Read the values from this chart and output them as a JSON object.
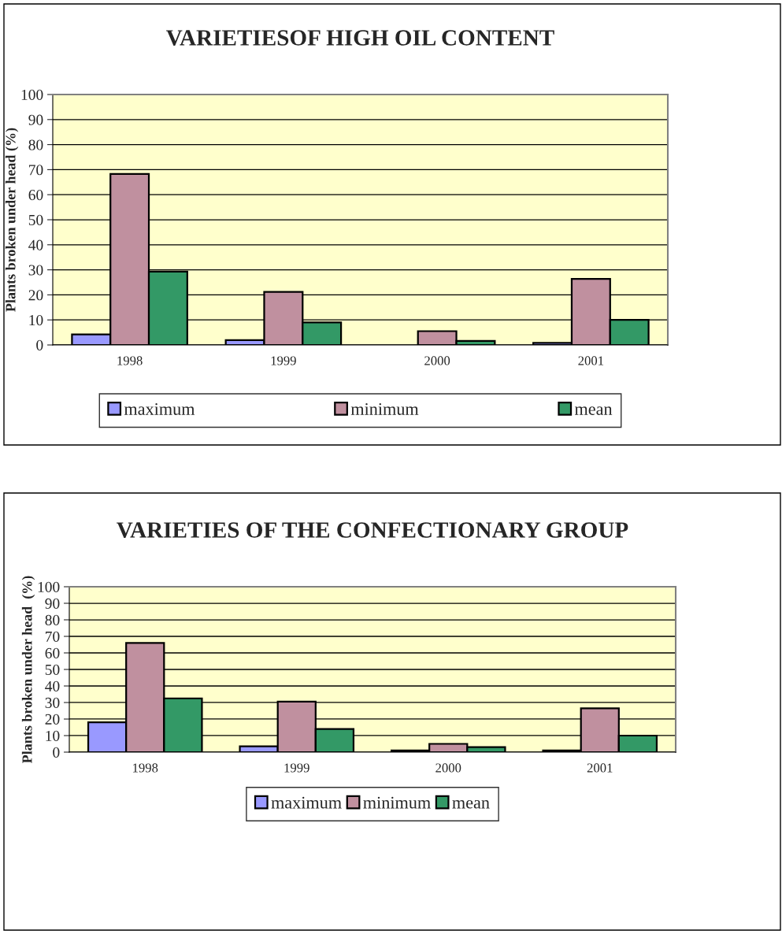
{
  "chart_data": [
    {
      "type": "bar",
      "title": "VARIETIESOF HIGH OIL CONTENT",
      "ylabel": "Plants broken under head (%)",
      "categories": [
        "1998",
        "1999",
        "2000",
        "2001"
      ],
      "series": [
        {
          "name": "maximum",
          "color": "#9999ff",
          "values": [
            4.2,
            1.9,
            null,
            0.8
          ]
        },
        {
          "name": "minimum",
          "color": "#c0909f",
          "values": [
            68.3,
            21.2,
            5.5,
            26.4
          ]
        },
        {
          "name": "mean",
          "color": "#339966",
          "values": [
            29.3,
            9.0,
            1.6,
            10
          ]
        }
      ],
      "ylim": [
        0,
        100
      ],
      "yticks": [
        0,
        10,
        20,
        30,
        40,
        50,
        60,
        70,
        80,
        90,
        100
      ],
      "grid": "y",
      "legend": "bottom"
    },
    {
      "type": "bar",
      "title": "VARIETIES OF THE CONFECTIONARY GROUP",
      "ylabel": "Plants broken under head  (%)",
      "categories": [
        "1998",
        "1999",
        "2000",
        "2001"
      ],
      "series": [
        {
          "name": "maximum",
          "color": "#9999ff",
          "values": [
            18,
            3.5,
            1,
            1
          ]
        },
        {
          "name": "minimum",
          "color": "#c0909f",
          "values": [
            66,
            30.5,
            5,
            26.5
          ]
        },
        {
          "name": "mean",
          "color": "#339966",
          "values": [
            32.5,
            14,
            3,
            10
          ]
        }
      ],
      "ylim": [
        0,
        100
      ],
      "yticks": [
        0,
        10,
        20,
        30,
        40,
        50,
        60,
        70,
        80,
        90,
        100
      ],
      "grid": "y",
      "legend": "bottom"
    }
  ]
}
